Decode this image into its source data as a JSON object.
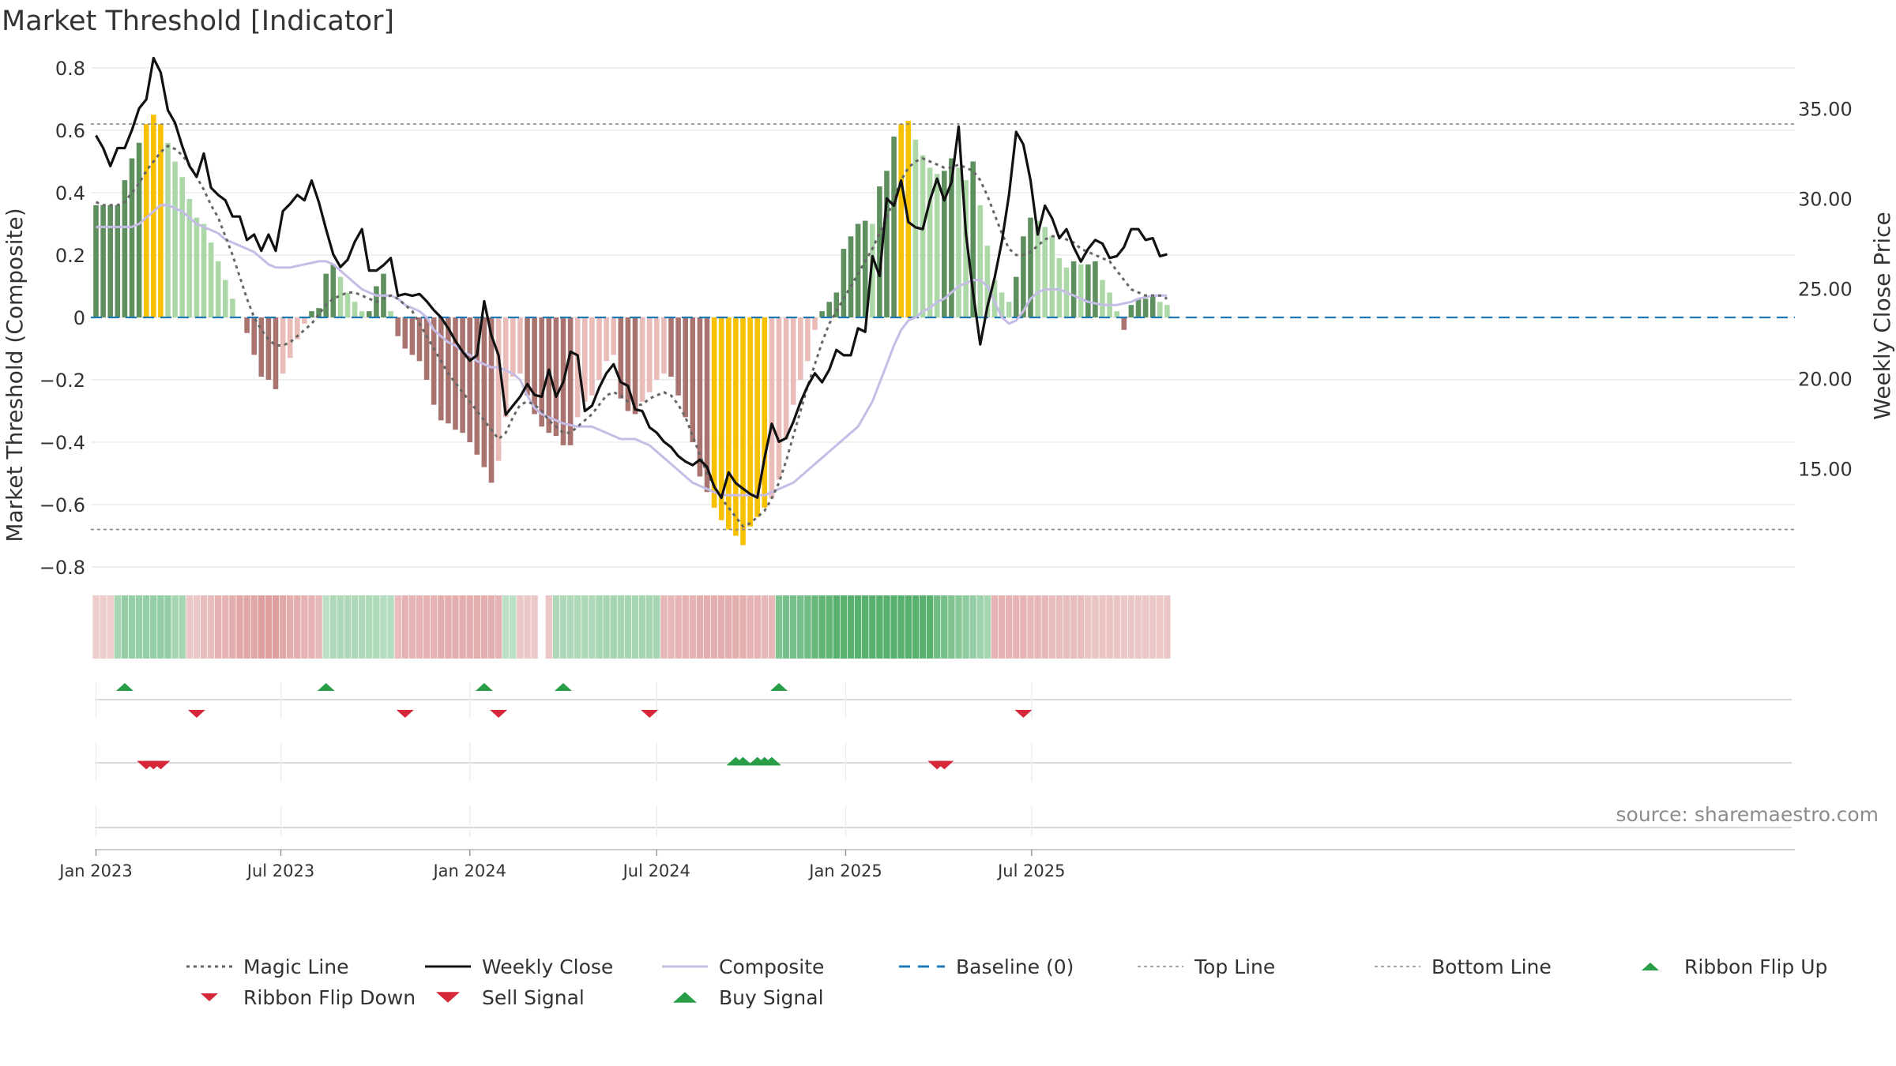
{
  "title": "Market Threshold [Indicator]",
  "source": "source: sharemaestro.com",
  "colors": {
    "magic_line": "#666666",
    "weekly_close": "#111111",
    "composite": "#c6bde6",
    "baseline": "#1f77b4",
    "ref_line": "#888888",
    "pos_light": "#acd8a8",
    "pos_dark": "#5e8f5e",
    "neg_light": "#e9bcb8",
    "neg_dark": "#a97470",
    "extreme": "#f7c100",
    "up_marker": "#2a9d47",
    "down_marker": "#d62839",
    "grid": "#e6e6e6"
  },
  "chart_data": {
    "type": "bar",
    "title": "Market Threshold [Indicator]",
    "ylabel_left": "Market Threshold (Composite)",
    "ylabel_right": "Weekly Close Price",
    "ylim_left": [
      -0.8,
      0.8
    ],
    "ylim_right": [
      9.55,
      37.25
    ],
    "yticks_left": [
      "0.8",
      "0.6",
      "0.4",
      "0.2",
      "0",
      "−0.2",
      "−0.4",
      "−0.6",
      "−0.8"
    ],
    "yticks_right": [
      "35.00",
      "30.00",
      "25.00",
      "20.00",
      "15.00"
    ],
    "x_start": "2023-01-02",
    "x_ticks": [
      "Jan 2023",
      "Jul 2023",
      "Jan 2024",
      "Jul 2024",
      "Jan 2025",
      "Jul 2025"
    ],
    "top_line": 0.62,
    "bottom_line": -0.68,
    "grid": true,
    "legend_position": "bottom",
    "series": [
      {
        "name": "Composite Histogram",
        "values": [
          0.36,
          0.36,
          0.36,
          0.36,
          0.44,
          0.51,
          0.56,
          0.62,
          0.65,
          0.62,
          0.56,
          0.5,
          0.45,
          0.38,
          0.32,
          0.3,
          0.24,
          0.18,
          0.12,
          0.06,
          0.0,
          -0.05,
          -0.12,
          -0.19,
          -0.2,
          -0.23,
          -0.18,
          -0.13,
          -0.07,
          -0.02,
          0.02,
          0.03,
          0.14,
          0.17,
          0.13,
          0.08,
          0.05,
          0.02,
          0.02,
          0.1,
          0.14,
          0.02,
          -0.06,
          -0.1,
          -0.12,
          -0.14,
          -0.2,
          -0.28,
          -0.33,
          -0.34,
          -0.36,
          -0.37,
          -0.4,
          -0.44,
          -0.48,
          -0.53,
          -0.46,
          -0.32,
          -0.19,
          -0.18,
          -0.25,
          -0.31,
          -0.35,
          -0.37,
          -0.38,
          -0.41,
          -0.41,
          -0.32,
          -0.27,
          -0.25,
          -0.2,
          -0.14,
          -0.12,
          -0.26,
          -0.3,
          -0.31,
          -0.27,
          -0.24,
          -0.2,
          -0.18,
          -0.19,
          -0.25,
          -0.32,
          -0.4,
          -0.51,
          -0.56,
          -0.61,
          -0.65,
          -0.68,
          -0.7,
          -0.73,
          -0.67,
          -0.64,
          -0.61,
          -0.58,
          -0.52,
          -0.39,
          -0.28,
          -0.2,
          -0.14,
          -0.04,
          0.02,
          0.05,
          0.08,
          0.22,
          0.26,
          0.3,
          0.31,
          0.3,
          0.42,
          0.47,
          0.58,
          0.62,
          0.63,
          0.57,
          0.52,
          0.48,
          0.46,
          0.47,
          0.51,
          0.48,
          0.44,
          0.5,
          0.36,
          0.23,
          0.12,
          0.08,
          0.05,
          0.13,
          0.26,
          0.32,
          0.31,
          0.29,
          0.26,
          0.19,
          0.16,
          0.18,
          0.17,
          0.17,
          0.18,
          0.12,
          0.08,
          0.02,
          -0.04,
          0.04,
          0.06,
          0.06,
          0.07,
          0.05,
          0.04
        ]
      },
      {
        "name": "Weekly Close",
        "values": [
          33.5,
          32.8,
          31.8,
          32.8,
          32.8,
          33.8,
          35.0,
          35.5,
          37.8,
          37.0,
          34.9,
          34.2,
          32.9,
          31.8,
          31.2,
          32.5,
          30.6,
          30.2,
          29.9,
          29.0,
          29.0,
          27.7,
          28.0,
          27.1,
          28.0,
          27.1,
          29.3,
          29.7,
          30.2,
          29.9,
          31.0,
          29.8,
          28.3,
          26.9,
          26.2,
          26.6,
          27.6,
          28.3,
          26.0,
          26.0,
          26.3,
          26.7,
          24.6,
          24.7,
          24.6,
          24.7,
          24.3,
          23.8,
          23.4,
          22.8,
          22.1,
          21.5,
          21.0,
          21.3,
          24.3,
          22.4,
          21.3,
          18.0,
          18.5,
          19.0,
          19.7,
          19.1,
          19.0,
          20.5,
          19.0,
          19.8,
          21.5,
          21.3,
          18.2,
          18.5,
          19.5,
          20.3,
          20.8,
          19.8,
          19.6,
          18.3,
          18.2,
          17.3,
          17.0,
          16.5,
          16.2,
          15.7,
          15.4,
          15.2,
          15.5,
          15.1,
          14.0,
          13.4,
          14.8,
          14.2,
          13.9,
          13.6,
          13.4,
          15.6,
          17.5,
          16.5,
          16.7,
          17.6,
          18.7,
          19.6,
          20.3,
          19.8,
          20.5,
          21.6,
          21.3,
          21.3,
          22.8,
          22.6,
          26.8,
          25.7,
          30.0,
          29.6,
          31.0,
          28.7,
          28.4,
          28.3,
          29.9,
          31.1,
          29.9,
          30.9,
          34.0,
          28.1,
          24.8,
          21.9,
          24.0,
          25.6,
          27.6,
          30.2,
          33.7,
          33.0,
          31.0,
          28.0,
          29.6,
          28.9,
          27.8,
          28.3,
          27.3,
          26.5,
          27.2,
          27.7,
          27.5,
          26.7,
          26.8,
          27.3,
          28.3,
          28.3,
          27.7,
          27.8,
          26.8,
          26.9
        ]
      },
      {
        "name": "Composite",
        "values": [
          0.29,
          0.29,
          0.29,
          0.29,
          0.29,
          0.29,
          0.3,
          0.32,
          0.34,
          0.36,
          0.36,
          0.35,
          0.34,
          0.32,
          0.3,
          0.29,
          0.28,
          0.27,
          0.25,
          0.24,
          0.23,
          0.22,
          0.21,
          0.19,
          0.17,
          0.16,
          0.16,
          0.16,
          0.165,
          0.17,
          0.175,
          0.18,
          0.18,
          0.17,
          0.15,
          0.13,
          0.11,
          0.09,
          0.08,
          0.07,
          0.07,
          0.07,
          0.06,
          0.04,
          0.03,
          0.02,
          0.0,
          -0.04,
          -0.06,
          -0.08,
          -0.09,
          -0.11,
          -0.12,
          -0.14,
          -0.15,
          -0.16,
          -0.16,
          -0.17,
          -0.18,
          -0.2,
          -0.25,
          -0.29,
          -0.31,
          -0.32,
          -0.33,
          -0.34,
          -0.345,
          -0.35,
          -0.35,
          -0.35,
          -0.36,
          -0.37,
          -0.38,
          -0.39,
          -0.39,
          -0.39,
          -0.4,
          -0.41,
          -0.43,
          -0.45,
          -0.47,
          -0.49,
          -0.51,
          -0.53,
          -0.54,
          -0.55,
          -0.56,
          -0.57,
          -0.57,
          -0.57,
          -0.57,
          -0.57,
          -0.57,
          -0.57,
          -0.56,
          -0.55,
          -0.54,
          -0.53,
          -0.51,
          -0.49,
          -0.47,
          -0.45,
          -0.43,
          -0.41,
          -0.39,
          -0.37,
          -0.35,
          -0.31,
          -0.27,
          -0.21,
          -0.15,
          -0.09,
          -0.04,
          -0.01,
          0.0,
          0.02,
          0.03,
          0.05,
          0.06,
          0.08,
          0.1,
          0.11,
          0.12,
          0.12,
          0.1,
          0.05,
          0.0,
          -0.02,
          -0.01,
          0.02,
          0.06,
          0.08,
          0.09,
          0.09,
          0.09,
          0.08,
          0.07,
          0.06,
          0.05,
          0.045,
          0.04,
          0.04,
          0.04,
          0.045,
          0.05,
          0.06,
          0.065,
          0.07,
          0.07,
          0.07
        ]
      },
      {
        "name": "Magic Line",
        "values": [
          0.37,
          0.36,
          0.36,
          0.36,
          0.37,
          0.4,
          0.43,
          0.47,
          0.5,
          0.53,
          0.55,
          0.54,
          0.52,
          0.49,
          0.45,
          0.41,
          0.36,
          0.32,
          0.26,
          0.2,
          0.13,
          0.06,
          0.0,
          -0.04,
          -0.07,
          -0.09,
          -0.09,
          -0.08,
          -0.06,
          -0.04,
          -0.02,
          0.01,
          0.04,
          0.06,
          0.07,
          0.08,
          0.08,
          0.07,
          0.06,
          0.05,
          0.06,
          0.07,
          0.06,
          0.04,
          0.02,
          -0.02,
          -0.06,
          -0.1,
          -0.14,
          -0.18,
          -0.21,
          -0.24,
          -0.27,
          -0.3,
          -0.33,
          -0.36,
          -0.39,
          -0.37,
          -0.32,
          -0.28,
          -0.27,
          -0.28,
          -0.3,
          -0.33,
          -0.35,
          -0.37,
          -0.37,
          -0.35,
          -0.33,
          -0.31,
          -0.28,
          -0.25,
          -0.24,
          -0.25,
          -0.27,
          -0.28,
          -0.28,
          -0.26,
          -0.25,
          -0.24,
          -0.25,
          -0.28,
          -0.32,
          -0.38,
          -0.44,
          -0.5,
          -0.54,
          -0.58,
          -0.61,
          -0.64,
          -0.67,
          -0.66,
          -0.64,
          -0.62,
          -0.58,
          -0.53,
          -0.46,
          -0.38,
          -0.3,
          -0.22,
          -0.15,
          -0.08,
          -0.02,
          0.02,
          0.06,
          0.1,
          0.14,
          0.18,
          0.22,
          0.27,
          0.32,
          0.38,
          0.44,
          0.48,
          0.5,
          0.51,
          0.5,
          0.49,
          0.48,
          0.48,
          0.49,
          0.48,
          0.47,
          0.44,
          0.39,
          0.33,
          0.27,
          0.22,
          0.2,
          0.2,
          0.21,
          0.23,
          0.25,
          0.26,
          0.26,
          0.25,
          0.24,
          0.22,
          0.21,
          0.2,
          0.19,
          0.18,
          0.15,
          0.12,
          0.09,
          0.08,
          0.07,
          0.07,
          0.07,
          0.06
        ]
      }
    ],
    "ribbon": {
      "levels": [
        -0.25,
        -0.25,
        -0.25,
        0.35,
        0.45,
        0.45,
        0.45,
        0.45,
        0.45,
        0.45,
        0.45,
        0.35,
        0.35,
        -0.3,
        -0.3,
        -0.4,
        -0.4,
        -0.5,
        -0.5,
        -0.55,
        -0.6,
        -0.6,
        -0.6,
        -0.7,
        -0.7,
        -0.7,
        -0.6,
        -0.55,
        -0.55,
        -0.5,
        -0.5,
        -0.45,
        0.2,
        0.3,
        0.3,
        0.3,
        0.3,
        0.3,
        0.3,
        0.3,
        0.25,
        0.25,
        -0.4,
        -0.5,
        -0.5,
        -0.5,
        -0.5,
        -0.5,
        -0.55,
        -0.55,
        -0.55,
        -0.55,
        -0.55,
        -0.55,
        -0.55,
        -0.55,
        -0.5,
        0.2,
        0.2,
        -0.3,
        -0.3,
        -0.3,
        null,
        -0.3,
        0.3,
        0.3,
        0.3,
        0.3,
        0.3,
        0.3,
        0.35,
        0.35,
        0.35,
        0.35,
        0.35,
        0.35,
        0.35,
        0.35,
        0.35,
        -0.45,
        -0.45,
        -0.5,
        -0.5,
        -0.5,
        -0.55,
        -0.55,
        -0.55,
        -0.55,
        -0.55,
        -0.55,
        -0.55,
        -0.5,
        -0.5,
        -0.45,
        -0.45,
        0.6,
        0.65,
        0.65,
        0.65,
        0.7,
        0.75,
        0.8,
        0.8,
        0.85,
        0.85,
        0.85,
        0.85,
        0.85,
        0.85,
        0.85,
        0.85,
        0.85,
        0.85,
        0.85,
        0.85,
        0.85,
        0.85,
        0.7,
        0.65,
        0.6,
        0.55,
        0.5,
        0.45,
        0.4,
        0.35,
        -0.5,
        -0.5,
        -0.5,
        -0.5,
        -0.5,
        -0.45,
        -0.45,
        -0.45,
        -0.4,
        -0.4,
        -0.4,
        -0.4,
        -0.4,
        -0.35,
        -0.35,
        -0.35,
        -0.35,
        -0.35,
        -0.3,
        -0.3,
        -0.3,
        -0.3,
        -0.3,
        -0.3,
        -0.3
      ]
    },
    "ribbon_flip_up": [
      4,
      32,
      54,
      65,
      95
    ],
    "ribbon_flip_down": [
      14,
      43,
      56,
      77,
      129
    ],
    "sell_signal": [
      7,
      8,
      9,
      117,
      118
    ],
    "buy_signal": [
      89,
      90,
      92,
      93,
      94
    ]
  },
  "legend": [
    {
      "label": "Magic Line",
      "icon": "dotted-line"
    },
    {
      "label": "Weekly Close",
      "icon": "solid-line"
    },
    {
      "label": "Composite",
      "icon": "solid-line"
    },
    {
      "label": "Baseline (0)",
      "icon": "dashed-line"
    },
    {
      "label": "Top Line",
      "icon": "dotted-line"
    },
    {
      "label": "Bottom Line",
      "icon": "dotted-line"
    },
    {
      "label": "Ribbon Flip Up",
      "icon": "triangle-up"
    },
    {
      "label": "Ribbon Flip Down",
      "icon": "triangle-down"
    },
    {
      "label": "Sell Signal",
      "icon": "triangle-down"
    },
    {
      "label": "Buy Signal",
      "icon": "triangle-up"
    }
  ]
}
